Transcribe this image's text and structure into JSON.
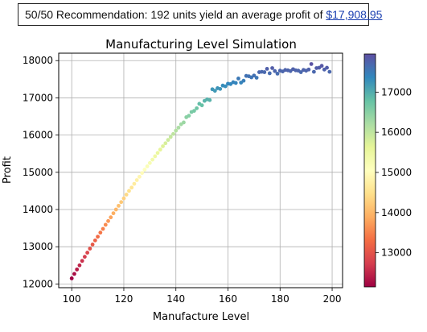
{
  "callout": {
    "text": "50/50 Recommendation: 192 units yield an average profit of ",
    "value": "$17,908.95"
  },
  "chart_data": {
    "type": "scatter",
    "title": "Manufacturing Level Simulation",
    "xlabel": "Manufacture Level",
    "ylabel": "Profit",
    "xlim": [
      95,
      204
    ],
    "ylim": [
      11900,
      18200
    ],
    "xticks": [
      100,
      120,
      140,
      160,
      180,
      200
    ],
    "yticks": [
      12000,
      13000,
      14000,
      15000,
      16000,
      17000,
      18000
    ],
    "grid": true,
    "colormap": "Spectral",
    "colorbar": {
      "min": 12150,
      "max": 17950,
      "ticks": [
        13000,
        14000,
        15000,
        16000,
        17000
      ]
    },
    "x": [
      100,
      101,
      102,
      103,
      104,
      105,
      106,
      107,
      108,
      109,
      110,
      111,
      112,
      113,
      114,
      115,
      116,
      117,
      118,
      119,
      120,
      121,
      122,
      123,
      124,
      125,
      126,
      127,
      128,
      129,
      130,
      131,
      132,
      133,
      134,
      135,
      136,
      137,
      138,
      139,
      140,
      141,
      142,
      143,
      144,
      145,
      146,
      147,
      148,
      149,
      150,
      151,
      152,
      153,
      154,
      155,
      156,
      157,
      158,
      159,
      160,
      161,
      162,
      163,
      164,
      165,
      166,
      167,
      168,
      169,
      170,
      171,
      172,
      173,
      174,
      175,
      176,
      177,
      178,
      179,
      180,
      181,
      182,
      183,
      184,
      185,
      186,
      187,
      188,
      189,
      190,
      191,
      192,
      193,
      194,
      195,
      196,
      197,
      198,
      199
    ],
    "y": [
      12150,
      12270,
      12390,
      12500,
      12620,
      12730,
      12840,
      12950,
      13060,
      13170,
      13270,
      13380,
      13480,
      13590,
      13690,
      13790,
      13900,
      14000,
      14100,
      14200,
      14300,
      14400,
      14500,
      14590,
      14690,
      14790,
      14880,
      14980,
      15070,
      15160,
      15250,
      15340,
      15430,
      15520,
      15610,
      15700,
      15780,
      15870,
      15950,
      16030,
      16120,
      16200,
      16290,
      16340,
      16480,
      16520,
      16620,
      16650,
      16720,
      16840,
      16800,
      16920,
      16960,
      16940,
      17230,
      17190,
      17260,
      17240,
      17330,
      17310,
      17380,
      17370,
      17420,
      17400,
      17520,
      17410,
      17460,
      17590,
      17580,
      17550,
      17600,
      17540,
      17690,
      17700,
      17690,
      17780,
      17660,
      17800,
      17720,
      17650,
      17730,
      17710,
      17750,
      17740,
      17720,
      17770,
      17740,
      17730,
      17690,
      17750,
      17730,
      17760,
      17908,
      17700,
      17800,
      17810,
      17860,
      17760,
      17810,
      17700
    ]
  }
}
